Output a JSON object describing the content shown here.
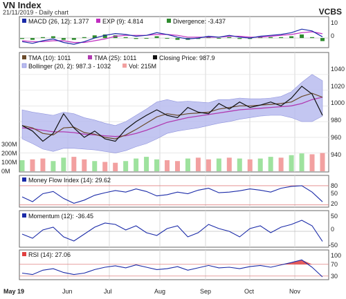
{
  "header": {
    "title": "VN Index",
    "subtitle": "21/11/2019 - Daily chart",
    "brand": "VCBS"
  },
  "x_axis": {
    "months": [
      "May 19",
      "Jun",
      "Jul",
      "Aug",
      "Sep",
      "Oct",
      "Nov"
    ]
  },
  "colors": {
    "macd": "#1a2aa8",
    "signal": "#c02cc0",
    "divergence": "#2e8b2e",
    "tma10": "#6a4a2a",
    "tma25": "#b03ab0",
    "close": "#111111",
    "boll_fill": "#b9bcef",
    "vol_green": "#9ee29e",
    "vol_red": "#f2a0a0",
    "mfi": "#1a2aa8",
    "mom": "#1a2aa8",
    "rsi": "#1a2aa8",
    "ref_line": "#e08080",
    "rsi_fill": "#e04040"
  },
  "panels": {
    "macd": {
      "legend": [
        "MACD (26, 12): 1.377",
        "EXP (9): 4.814",
        "Divergence: -3.437"
      ],
      "yticks": [
        "10",
        "0"
      ]
    },
    "price": {
      "legend_row1": [
        "TMA (10): 1011",
        "TMA (25): 1011",
        "Closing Price: 987.9"
      ],
      "legend_row2": [
        "Bollinger (20, 2): 987.3 - 1032",
        "Vol: 215M"
      ],
      "yticks": [
        "1040",
        "1020",
        "1000",
        "980",
        "960",
        "940"
      ],
      "vol_ticks": [
        "300M",
        "200M",
        "100M",
        "0M"
      ]
    },
    "mfi": {
      "legend": "Money Flow Index (14): 29.62",
      "yticks": [
        "80",
        "50",
        "20"
      ]
    },
    "momentum": {
      "legend": "Momentum (12): -36.45",
      "yticks": [
        "50",
        "0",
        "-50"
      ]
    },
    "rsi": {
      "legend": "RSI (14): 27.06",
      "yticks": [
        "100",
        "70",
        "30"
      ]
    }
  },
  "chart_data": [
    {
      "type": "line",
      "title": "MACD",
      "series": [
        {
          "name": "MACD (26, 12)",
          "values": [
            -4,
            -6,
            -3,
            -1,
            -5,
            -7,
            -4,
            0,
            3,
            5,
            4,
            2,
            3,
            6,
            4,
            1,
            -1,
            0,
            2,
            1,
            3,
            1,
            0,
            2,
            3,
            4,
            6,
            10,
            8,
            1.4
          ]
        },
        {
          "name": "EXP (9)",
          "values": [
            -3,
            -4,
            -4,
            -3,
            -3,
            -5,
            -5,
            -3,
            -1,
            2,
            3,
            3,
            3,
            4,
            4,
            3,
            1,
            1,
            1,
            1,
            2,
            2,
            1,
            1,
            2,
            3,
            4,
            6,
            7,
            4.8
          ]
        }
      ],
      "divergence": [
        -1,
        -2,
        1,
        2,
        -2,
        -2,
        1,
        3,
        4,
        3,
        1,
        -1,
        0,
        2,
        0,
        -2,
        -2,
        -1,
        1,
        0,
        1,
        -1,
        -1,
        1,
        1,
        1,
        2,
        4,
        1,
        -3.4
      ],
      "yticks": [
        10,
        0
      ]
    },
    {
      "type": "line",
      "title": "Price",
      "series": [
        {
          "name": "Closing Price",
          "values": [
            975,
            968,
            955,
            965,
            990,
            972,
            960,
            968,
            958,
            955,
            970,
            980,
            988,
            995,
            988,
            985,
            998,
            992,
            990,
            1003,
            996,
            1005,
            998,
            1001,
            1005,
            1000,
            1010,
            1025,
            1015,
            988
          ]
        },
        {
          "name": "TMA (10)",
          "values": [
            975,
            972,
            965,
            963,
            972,
            973,
            966,
            964,
            960,
            958,
            963,
            970,
            978,
            986,
            990,
            988,
            990,
            991,
            992,
            996,
            998,
            1000,
            1000,
            1001,
            1002,
            1003,
            1005,
            1012,
            1016,
            1011
          ]
        },
        {
          "name": "TMA (25)",
          "values": [
            972,
            971,
            969,
            967,
            967,
            966,
            964,
            963,
            962,
            961,
            962,
            965,
            969,
            974,
            979,
            982,
            985,
            987,
            989,
            991,
            993,
            995,
            996,
            997,
            998,
            999,
            1000,
            1003,
            1008,
            1011
          ]
        }
      ],
      "bollinger_upper": [
        995,
        992,
        990,
        988,
        992,
        990,
        985,
        982,
        978,
        975,
        980,
        988,
        996,
        1005,
        1008,
        1005,
        1006,
        1005,
        1004,
        1008,
        1008,
        1010,
        1009,
        1009,
        1010,
        1012,
        1018,
        1030,
        1040,
        1032
      ],
      "bollinger_lower": [
        958,
        952,
        945,
        942,
        946,
        946,
        945,
        944,
        942,
        940,
        943,
        948,
        952,
        958,
        965,
        968,
        970,
        972,
        975,
        978,
        980,
        983,
        985,
        987,
        988,
        988,
        985,
        980,
        980,
        987
      ],
      "volume": [
        130,
        140,
        150,
        120,
        160,
        170,
        140,
        120,
        110,
        100,
        120,
        150,
        170,
        140,
        130,
        120,
        150,
        160,
        140,
        150,
        160,
        150,
        140,
        150,
        170,
        160,
        190,
        210,
        200,
        215
      ],
      "ylim": [
        940,
        1045
      ]
    },
    {
      "type": "line",
      "title": "Money Flow Index (14)",
      "values": [
        45,
        30,
        55,
        62,
        40,
        25,
        35,
        50,
        58,
        65,
        60,
        70,
        62,
        48,
        52,
        60,
        55,
        66,
        72,
        58,
        60,
        64,
        70,
        66,
        60,
        72,
        78,
        80,
        60,
        29.6
      ],
      "ylim": [
        20,
        90
      ]
    },
    {
      "type": "line",
      "title": "Momentum (12)",
      "values": [
        -10,
        -25,
        5,
        15,
        -20,
        -35,
        -10,
        15,
        30,
        25,
        5,
        20,
        -5,
        -15,
        10,
        20,
        -20,
        -5,
        25,
        10,
        0,
        -20,
        10,
        20,
        -5,
        15,
        25,
        40,
        20,
        -36.5
      ],
      "ylim": [
        -50,
        50
      ]
    },
    {
      "type": "line",
      "title": "RSI (14)",
      "values": [
        40,
        35,
        50,
        55,
        42,
        35,
        40,
        52,
        60,
        65,
        58,
        68,
        60,
        52,
        55,
        62,
        50,
        58,
        66,
        58,
        60,
        55,
        62,
        66,
        60,
        68,
        76,
        85,
        60,
        27.1
      ],
      "ylim": [
        20,
        100
      ]
    }
  ]
}
